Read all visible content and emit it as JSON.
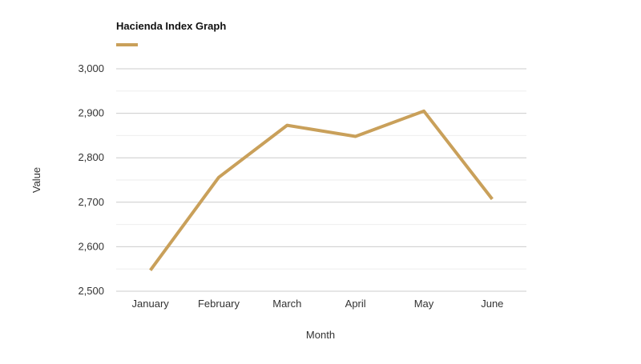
{
  "chart_data": {
    "type": "line",
    "title": "",
    "xlabel": "Month",
    "ylabel": "Value",
    "categories": [
      "January",
      "February",
      "March",
      "April",
      "May",
      "June"
    ],
    "series": [
      {
        "name": "Hacienda Index Graph",
        "values": [
          2547,
          2756,
          2873,
          2848,
          2905,
          2707
        ],
        "color": "#c9a05a"
      }
    ],
    "ylim": [
      2500,
      3000
    ],
    "yticks": [
      2500,
      2600,
      2700,
      2800,
      2900,
      3000
    ],
    "ytick_labels": [
      "2,500",
      "2,600",
      "2,700",
      "2,800",
      "2,900",
      "3,000"
    ],
    "grid": true,
    "legend_position": "top-left",
    "colors": {
      "grid_major": "#cccccc",
      "grid_minor": "#eeeeee",
      "series": "#c9a05a"
    }
  }
}
